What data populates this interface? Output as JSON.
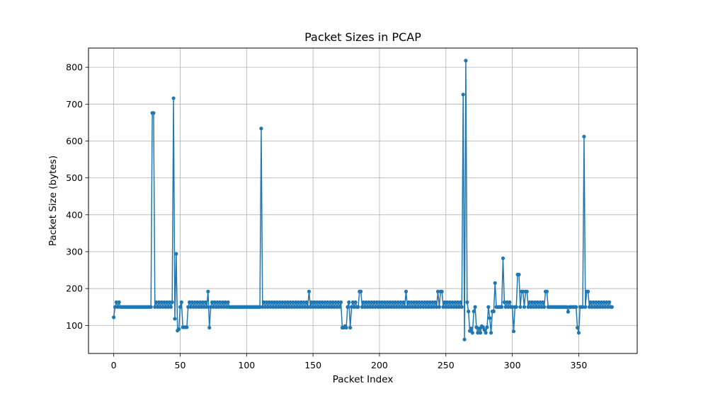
{
  "chart_data": {
    "type": "line",
    "title": "Packet Sizes in PCAP",
    "xlabel": "Packet Index",
    "ylabel": "Packet Size (bytes)",
    "xlim": [
      -19,
      394
    ],
    "ylim": [
      24,
      852
    ],
    "xticks": [
      0,
      50,
      100,
      150,
      200,
      250,
      300,
      350
    ],
    "yticks": [
      100,
      200,
      300,
      400,
      500,
      600,
      700,
      800
    ],
    "grid": true,
    "color": "#1f77b4",
    "marker": "circle",
    "series": [
      {
        "x": [
          0,
          1,
          2,
          3,
          4,
          5,
          6,
          7,
          8,
          9,
          10,
          11,
          12,
          13,
          14,
          15,
          16,
          17,
          18,
          19,
          20,
          21,
          22,
          23,
          24,
          25,
          26,
          27,
          28,
          29,
          30,
          31,
          32,
          33,
          34,
          35,
          36,
          37,
          38,
          39,
          40,
          41,
          42,
          43,
          44,
          45,
          46,
          47,
          48,
          49,
          50,
          51,
          52,
          53,
          54,
          55,
          56,
          57,
          58,
          59,
          60,
          61,
          62,
          63,
          64,
          65,
          66,
          67,
          68,
          69,
          70,
          71,
          72,
          73,
          74,
          75,
          76,
          77,
          78,
          79,
          80,
          81,
          82,
          83,
          84,
          85,
          86,
          87,
          88,
          89,
          90,
          91,
          92,
          93,
          94,
          95,
          96,
          97,
          98,
          99,
          100,
          101,
          102,
          103,
          104,
          105,
          106,
          107,
          108,
          109,
          110,
          111,
          112,
          113,
          114,
          115,
          116,
          117,
          118,
          119,
          120,
          121,
          122,
          123,
          124,
          125,
          126,
          127,
          128,
          129,
          130,
          131,
          132,
          133,
          134,
          135,
          136,
          137,
          138,
          139,
          140,
          141,
          142,
          143,
          144,
          145,
          146,
          147,
          148,
          149,
          150,
          151,
          152,
          153,
          154,
          155,
          156,
          157,
          158,
          159,
          160,
          161,
          162,
          163,
          164,
          165,
          166,
          167,
          168,
          169,
          170,
          171,
          172,
          173,
          174,
          175,
          176,
          177,
          178,
          179,
          180,
          181,
          182,
          183,
          184,
          185,
          186,
          187,
          188,
          189,
          190,
          191,
          192,
          193,
          194,
          195,
          196,
          197,
          198,
          199,
          200,
          201,
          202,
          203,
          204,
          205,
          206,
          207,
          208,
          209,
          210,
          211,
          212,
          213,
          214,
          215,
          216,
          217,
          218,
          219,
          220,
          221,
          222,
          223,
          224,
          225,
          226,
          227,
          228,
          229,
          230,
          231,
          232,
          233,
          234,
          235,
          236,
          237,
          238,
          239,
          240,
          241,
          242,
          243,
          244,
          245,
          246,
          247,
          248,
          249,
          250,
          251,
          252,
          253,
          254,
          255,
          256,
          257,
          258,
          259,
          260,
          261,
          262,
          263,
          264,
          265,
          266,
          267,
          268,
          269,
          270,
          271,
          272,
          273,
          274,
          275,
          276,
          277,
          278,
          279,
          280,
          281,
          282,
          283,
          284,
          285,
          286,
          287,
          288,
          289,
          290,
          291,
          292,
          293,
          294,
          295,
          296,
          297,
          298,
          299,
          300,
          301,
          302,
          303,
          304,
          305,
          306,
          307,
          308,
          309,
          310,
          311,
          312,
          313,
          314,
          315,
          316,
          317,
          318,
          319,
          320,
          321,
          322,
          323,
          324,
          325,
          326,
          327,
          328,
          329,
          330,
          331,
          332,
          333,
          334,
          335,
          336,
          337,
          338,
          339,
          340,
          341,
          342,
          343,
          344,
          345,
          346,
          347,
          348,
          349,
          350,
          351,
          352,
          353,
          354,
          355,
          356,
          357,
          358,
          359,
          360,
          361,
          362,
          363,
          364,
          365,
          366,
          367,
          368,
          369,
          370,
          371,
          372,
          373,
          374,
          375
        ],
        "y": [
          122,
          150,
          163,
          150,
          163,
          150,
          150,
          150,
          150,
          150,
          150,
          150,
          150,
          150,
          150,
          150,
          150,
          150,
          150,
          150,
          150,
          150,
          150,
          150,
          150,
          150,
          150,
          150,
          150,
          676,
          676,
          150,
          163,
          150,
          163,
          150,
          163,
          150,
          163,
          150,
          163,
          150,
          163,
          150,
          163,
          716,
          118,
          294,
          86,
          90,
          150,
          163,
          95,
          95,
          95,
          95,
          150,
          163,
          150,
          163,
          150,
          163,
          150,
          163,
          150,
          163,
          150,
          163,
          150,
          163,
          150,
          192,
          94,
          150,
          163,
          150,
          163,
          150,
          163,
          150,
          163,
          150,
          163,
          150,
          163,
          150,
          163,
          150,
          150,
          150,
          150,
          150,
          150,
          150,
          150,
          150,
          150,
          150,
          150,
          150,
          150,
          150,
          150,
          150,
          150,
          150,
          150,
          150,
          150,
          150,
          150,
          634,
          150,
          163,
          150,
          163,
          150,
          163,
          150,
          163,
          150,
          163,
          150,
          163,
          150,
          163,
          150,
          163,
          150,
          163,
          150,
          163,
          150,
          163,
          150,
          163,
          150,
          163,
          150,
          163,
          150,
          163,
          150,
          163,
          150,
          163,
          150,
          192,
          150,
          163,
          150,
          163,
          150,
          163,
          150,
          163,
          150,
          163,
          150,
          163,
          150,
          163,
          150,
          163,
          150,
          163,
          150,
          163,
          150,
          163,
          150,
          163,
          94,
          94,
          98,
          94,
          150,
          163,
          94,
          150,
          163,
          150,
          163,
          150,
          150,
          192,
          192,
          150,
          163,
          150,
          163,
          150,
          163,
          150,
          163,
          150,
          163,
          150,
          163,
          150,
          163,
          150,
          163,
          150,
          163,
          150,
          163,
          150,
          163,
          150,
          163,
          150,
          163,
          150,
          163,
          150,
          163,
          150,
          163,
          150,
          192,
          150,
          163,
          150,
          163,
          150,
          163,
          150,
          163,
          150,
          163,
          150,
          163,
          150,
          163,
          150,
          163,
          150,
          163,
          150,
          163,
          150,
          163,
          150,
          192,
          150,
          192,
          192,
          150,
          163,
          150,
          163,
          150,
          163,
          150,
          163,
          150,
          163,
          150,
          163,
          150,
          163,
          150,
          726,
          62,
          818,
          163,
          138,
          85,
          92,
          80,
          138,
          150,
          95,
          80,
          92,
          80,
          98,
          95,
          88,
          80,
          95,
          150,
          120,
          80,
          138,
          138,
          215,
          150,
          150,
          150,
          150,
          150,
          282,
          163,
          150,
          163,
          150,
          163,
          150,
          150,
          84,
          150,
          150,
          238,
          238,
          150,
          192,
          192,
          150,
          192,
          192,
          150,
          163,
          150,
          163,
          150,
          163,
          150,
          163,
          150,
          163,
          150,
          163,
          150,
          192,
          192,
          150,
          150,
          150,
          150,
          150,
          150,
          150,
          150,
          150,
          150,
          150,
          150,
          150,
          150,
          150,
          137,
          150,
          150,
          150,
          150,
          150,
          150,
          94,
          80,
          150,
          150,
          150,
          612,
          150,
          192,
          192,
          150,
          163,
          150,
          163,
          150,
          163,
          150,
          163,
          150,
          163,
          150,
          163,
          150,
          163,
          150,
          163,
          150,
          150
        ]
      }
    ]
  }
}
